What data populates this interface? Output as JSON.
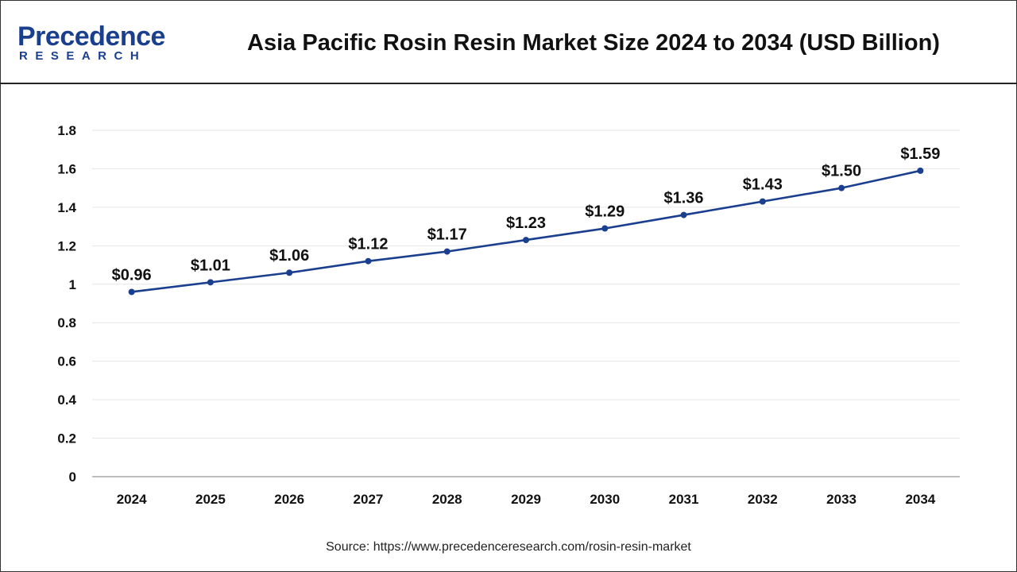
{
  "header": {
    "logo_top": "Precedence",
    "logo_bottom": "RESEARCH",
    "title": "Asia Pacific Rosin Resin Market Size 2024 to 2034 (USD Billion)"
  },
  "colors": {
    "line": "#1b3f8f",
    "grid": "#e6e6e6",
    "text": "#111111",
    "brand": "#1b3f8f"
  },
  "chart_data": {
    "type": "line",
    "title": "Asia Pacific Rosin Resin Market Size 2024 to 2034 (USD Billion)",
    "xlabel": "",
    "ylabel": "",
    "categories": [
      "2024",
      "2025",
      "2026",
      "2027",
      "2028",
      "2029",
      "2030",
      "2031",
      "2032",
      "2033",
      "2034"
    ],
    "series": [
      {
        "values": [
          0.96,
          1.01,
          1.06,
          1.12,
          1.17,
          1.23,
          1.29,
          1.36,
          1.43,
          1.5,
          1.59
        ],
        "labels": [
          "$0.96",
          "$1.01",
          "$1.06",
          "$1.12",
          "$1.17",
          "$1.23",
          "$1.29",
          "$1.36",
          "$1.43",
          "$1.50",
          "$1.59"
        ]
      }
    ],
    "ylim": [
      0,
      1.8
    ],
    "yticks": [
      0,
      0.2,
      0.4,
      0.6,
      0.8,
      1,
      1.2,
      1.4,
      1.6,
      1.8
    ],
    "ytick_labels": [
      "0",
      "0.2",
      "0.4",
      "0.6",
      "0.8",
      "1",
      "1.2",
      "1.4",
      "1.6",
      "1.8"
    ],
    "grid": true,
    "legend": "none"
  },
  "footer": {
    "source": "Source: https://www.precedenceresearch.com/rosin-resin-market"
  }
}
